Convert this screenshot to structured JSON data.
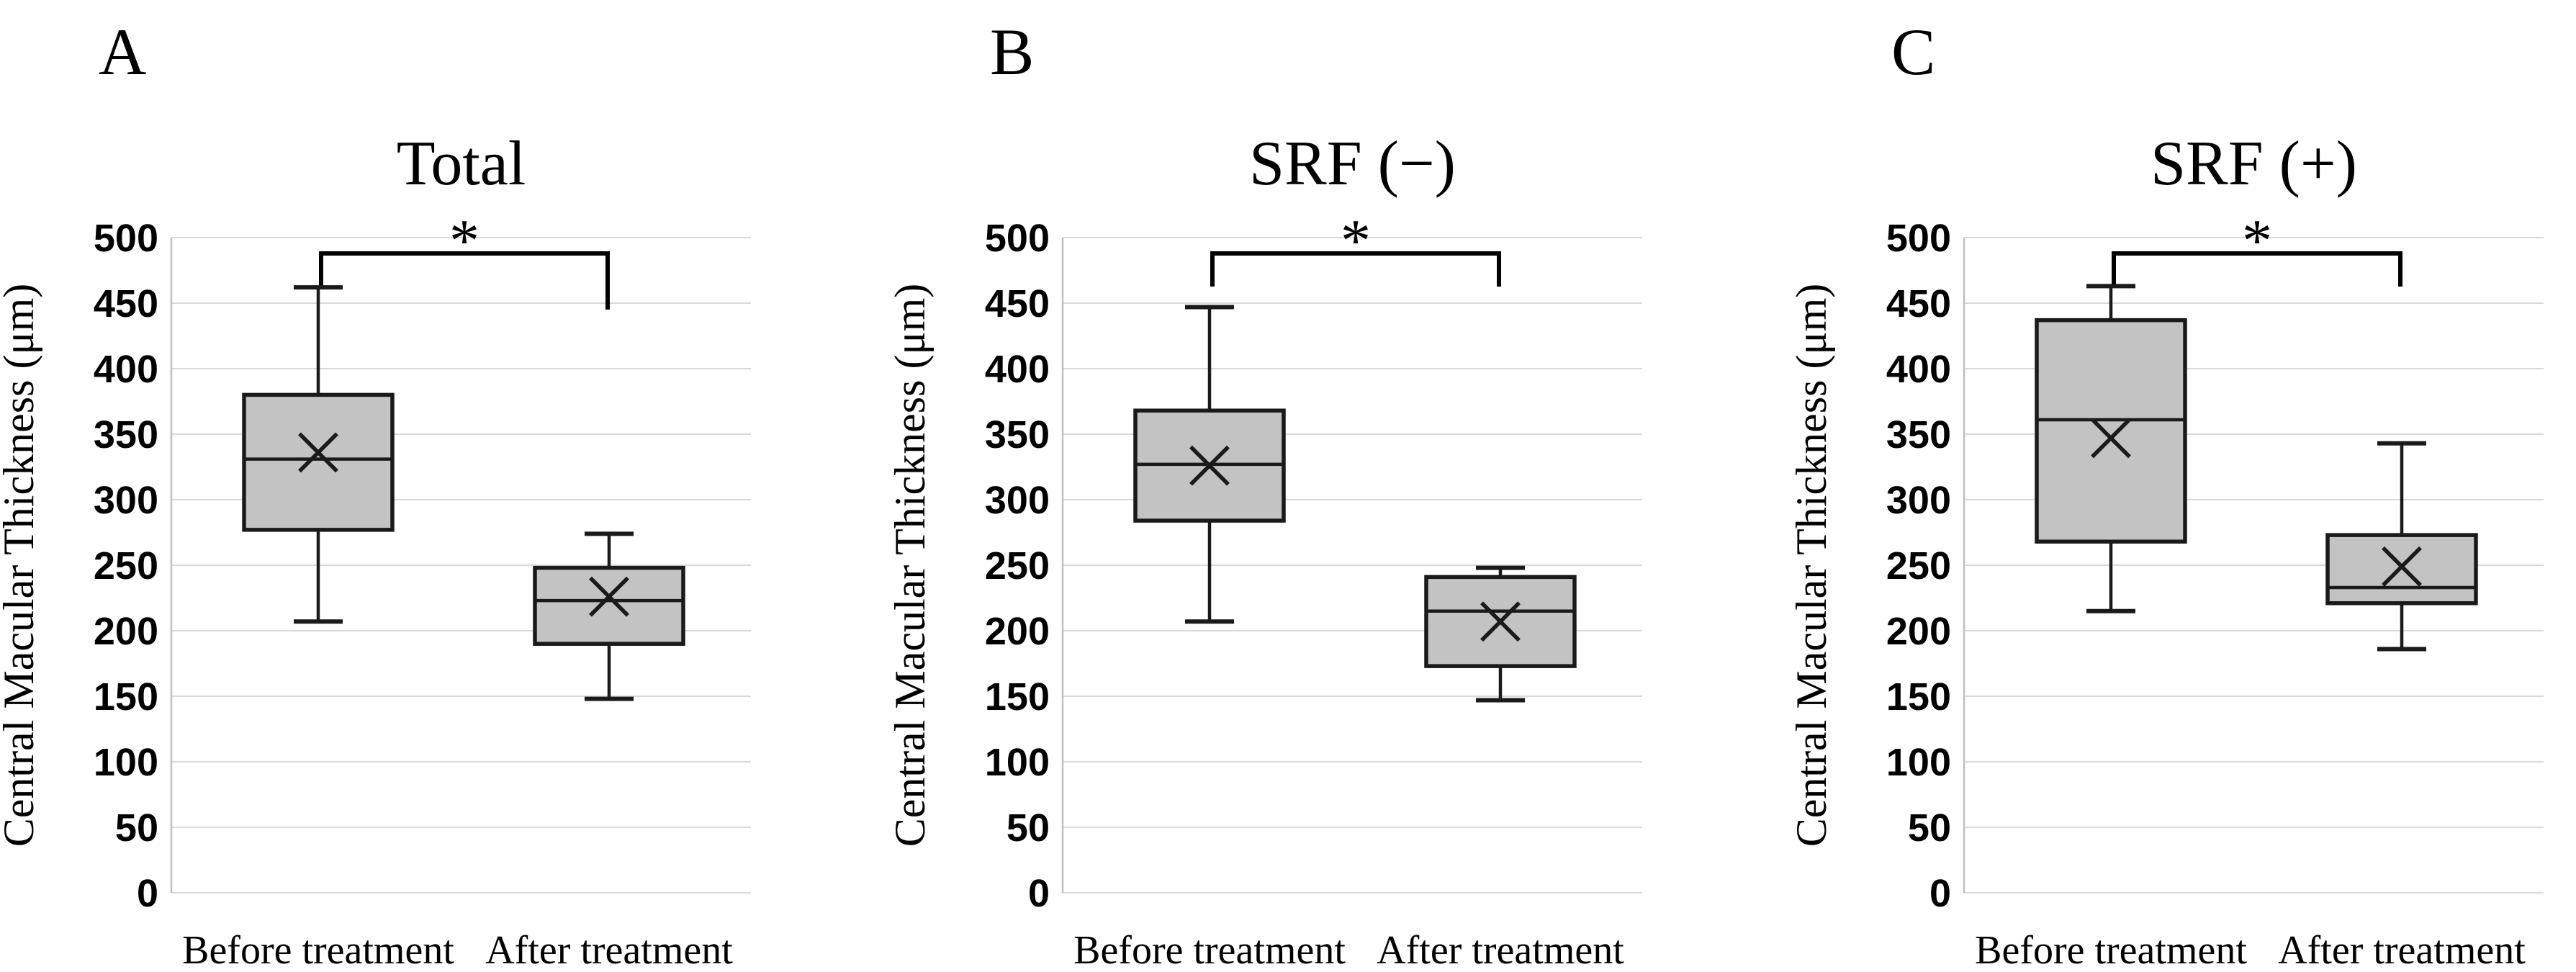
{
  "figure": {
    "y_axis_label": "Central Macular Thickness  (μm)",
    "x_categories": [
      "Before treatment",
      "After treatment"
    ],
    "significance_marker": "*",
    "colors": {
      "box_fill": "#c3c3c3",
      "box_stroke": "#1a1a1a",
      "gridline": "#d9d9d9",
      "axis_line": "#bfbfbf",
      "text": "#000000"
    }
  },
  "chart_data": [
    {
      "type": "boxplot",
      "panel_label": "A",
      "title": "Total",
      "ylabel": "Central Macular Thickness  (μm)",
      "ylim": [
        0,
        500
      ],
      "ytick_step": 50,
      "grid": "horizontal",
      "categories": [
        "Before treatment",
        "After treatment"
      ],
      "series": [
        {
          "name": "Before treatment",
          "min": 207,
          "q1": 277,
          "median": 331,
          "mean": 336,
          "q3": 380,
          "max": 462
        },
        {
          "name": "After treatment",
          "min": 148,
          "q1": 190,
          "median": 223,
          "mean": 226,
          "q3": 248,
          "max": 274
        }
      ],
      "significance": "*"
    },
    {
      "type": "boxplot",
      "panel_label": "B",
      "title": "SRF (−)",
      "ylabel": "Central Macular Thickness  (μm)",
      "ylim": [
        0,
        500
      ],
      "ytick_step": 50,
      "grid": "horizontal",
      "categories": [
        "Before treatment",
        "After treatment"
      ],
      "series": [
        {
          "name": "Before treatment",
          "min": 207,
          "q1": 284,
          "median": 327,
          "mean": 326,
          "q3": 368,
          "max": 447
        },
        {
          "name": "After treatment",
          "min": 147,
          "q1": 173,
          "median": 215,
          "mean": 207,
          "q3": 241,
          "max": 248
        }
      ],
      "significance": "*"
    },
    {
      "type": "boxplot",
      "panel_label": "C",
      "title": "SRF (+)",
      "ylabel": "Central Macular Thickness  (μm)",
      "ylim": [
        0,
        500
      ],
      "ytick_step": 50,
      "grid": "horizontal",
      "categories": [
        "Before treatment",
        "After treatment"
      ],
      "series": [
        {
          "name": "Before treatment",
          "min": 215,
          "q1": 268,
          "median": 361,
          "mean": 347,
          "q3": 437,
          "max": 463
        },
        {
          "name": "After treatment",
          "min": 186,
          "q1": 221,
          "median": 233,
          "mean": 249,
          "q3": 273,
          "max": 343
        }
      ],
      "significance": "*"
    }
  ]
}
